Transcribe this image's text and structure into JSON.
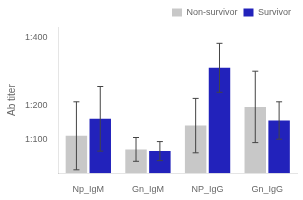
{
  "chart_data": {
    "type": "bar",
    "categories": [
      "Np_IgM",
      "Gn_IgM",
      "NP_IgG",
      "Gn_IgG"
    ],
    "series": [
      {
        "name": "Non-survivor",
        "color": "#c8c8c8",
        "values": [
          110,
          70,
          140,
          195
        ],
        "errors": [
          100,
          35,
          80,
          105
        ]
      },
      {
        "name": "Survivor",
        "color": "#2222bb",
        "values": [
          160,
          65,
          310,
          155
        ],
        "errors": [
          95,
          28,
          72,
          55
        ]
      }
    ],
    "ylabel": "Ab titer",
    "ylim": [
      0,
      430
    ],
    "yticks": [
      {
        "value": 0,
        "label": ""
      },
      {
        "value": 100,
        "label": "1:100"
      },
      {
        "value": 200,
        "label": "1:200"
      },
      {
        "value": 300,
        "label": ""
      },
      {
        "value": 400,
        "label": "1:400"
      }
    ],
    "grid": false,
    "legend": "upper right"
  }
}
